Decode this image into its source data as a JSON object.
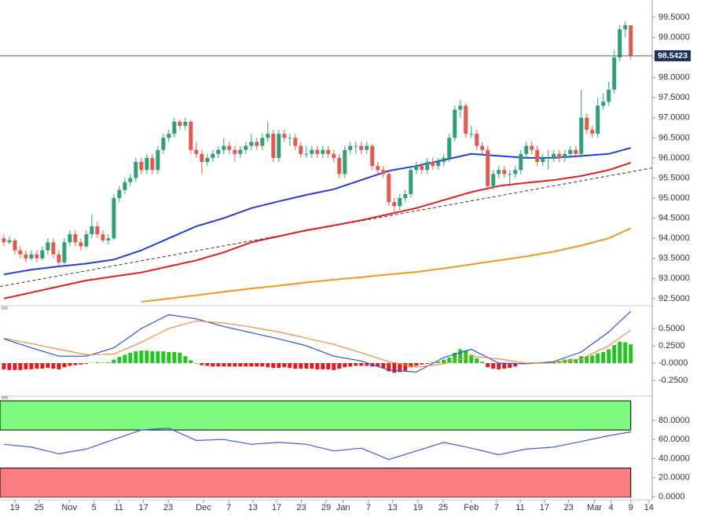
{
  "chart_data": [
    {
      "type": "candlestick",
      "xlim": [
        -0.7,
        117.9
      ],
      "ylim": [
        92.4,
        99.93
      ],
      "yticks": [
        {
          "value": 92.5,
          "label": "92.5000"
        },
        {
          "value": 93,
          "label": "93.0000"
        },
        {
          "value": 93.5,
          "label": "93.5000"
        },
        {
          "value": 94,
          "label": "94.0000"
        },
        {
          "value": 94.5,
          "label": "94.5000"
        },
        {
          "value": 95,
          "label": "95.0000"
        },
        {
          "value": 95.5,
          "label": "95.5000"
        },
        {
          "value": 96,
          "label": "96.0000"
        },
        {
          "value": 96.5,
          "label": "96.5000"
        },
        {
          "value": 97,
          "label": "97.0000"
        },
        {
          "value": 97.5,
          "label": "97.5000"
        },
        {
          "value": 98,
          "label": "98.0000"
        },
        {
          "value": 98.5,
          "label": "98.5000"
        },
        {
          "value": 99,
          "label": "99.0000"
        },
        {
          "value": 99.5,
          "label": "99.5000"
        }
      ],
      "up_color": "#2e9f77",
      "down_color": "#e05a4f",
      "candles": [
        [
          94.0,
          94.1,
          93.8,
          93.9
        ],
        [
          93.9,
          94.05,
          93.85,
          93.95
        ],
        [
          93.95,
          94.0,
          93.6,
          93.7
        ],
        [
          93.7,
          93.8,
          93.5,
          93.6
        ],
        [
          93.6,
          93.7,
          93.4,
          93.5
        ],
        [
          93.5,
          93.7,
          93.45,
          93.6
        ],
        [
          93.6,
          93.7,
          93.4,
          93.5
        ],
        [
          93.5,
          93.8,
          93.45,
          93.7
        ],
        [
          93.7,
          94.0,
          93.6,
          93.9
        ],
        [
          93.9,
          94.0,
          93.5,
          93.6
        ],
        [
          93.6,
          93.7,
          93.3,
          93.4
        ],
        [
          93.4,
          94.0,
          93.35,
          93.9
        ],
        [
          93.9,
          94.2,
          93.8,
          94.1
        ],
        [
          94.1,
          94.2,
          93.8,
          93.9
        ],
        [
          93.9,
          94.0,
          93.7,
          93.8
        ],
        [
          93.8,
          94.2,
          93.75,
          94.1
        ],
        [
          94.1,
          94.6,
          94.0,
          94.3
        ],
        [
          94.3,
          94.4,
          94.0,
          94.1
        ],
        [
          94.1,
          94.2,
          93.9,
          93.95
        ],
        [
          93.95,
          94.1,
          93.85,
          94.0
        ],
        [
          94.0,
          95.1,
          93.95,
          95.0
        ],
        [
          95.0,
          95.3,
          94.9,
          95.2
        ],
        [
          95.2,
          95.5,
          95.1,
          95.4
        ],
        [
          95.4,
          95.6,
          95.3,
          95.5
        ],
        [
          95.5,
          96.0,
          95.4,
          95.9
        ],
        [
          95.9,
          96.0,
          95.6,
          95.7
        ],
        [
          95.7,
          96.1,
          95.6,
          96.0
        ],
        [
          96.0,
          96.1,
          95.6,
          95.7
        ],
        [
          95.7,
          96.3,
          95.6,
          96.2
        ],
        [
          96.2,
          96.6,
          96.1,
          96.5
        ],
        [
          96.5,
          96.7,
          96.4,
          96.6
        ],
        [
          96.6,
          97.0,
          96.5,
          96.9
        ],
        [
          96.9,
          96.95,
          96.7,
          96.8
        ],
        [
          96.8,
          97.0,
          96.7,
          96.9
        ],
        [
          96.9,
          96.95,
          96.1,
          96.2
        ],
        [
          96.2,
          96.4,
          96.0,
          96.1
        ],
        [
          96.1,
          96.2,
          95.6,
          95.9
        ],
        [
          95.9,
          96.1,
          95.8,
          96.0
        ],
        [
          96.0,
          96.2,
          95.9,
          96.1
        ],
        [
          96.1,
          96.3,
          96.0,
          96.2
        ],
        [
          96.2,
          96.5,
          96.1,
          96.3
        ],
        [
          96.3,
          96.4,
          96.1,
          96.2
        ],
        [
          96.2,
          96.3,
          95.9,
          96.1
        ],
        [
          96.1,
          96.3,
          96.0,
          96.2
        ],
        [
          96.2,
          96.4,
          96.1,
          96.3
        ],
        [
          96.3,
          96.6,
          96.2,
          96.4
        ],
        [
          96.4,
          96.5,
          96.2,
          96.3
        ],
        [
          96.3,
          96.6,
          96.2,
          96.5
        ],
        [
          96.5,
          96.9,
          96.4,
          96.6
        ],
        [
          96.6,
          96.7,
          95.9,
          96.0
        ],
        [
          96.0,
          96.7,
          95.9,
          96.6
        ],
        [
          96.6,
          96.7,
          96.4,
          96.5
        ],
        [
          96.5,
          96.6,
          96.3,
          96.5
        ],
        [
          96.5,
          96.6,
          96.2,
          96.3
        ],
        [
          96.3,
          96.4,
          96.0,
          96.1
        ],
        [
          96.1,
          96.3,
          96.0,
          96.1
        ],
        [
          96.1,
          96.3,
          96.0,
          96.2
        ],
        [
          96.2,
          96.3,
          96.0,
          96.1
        ],
        [
          96.1,
          96.3,
          96.0,
          96.2
        ],
        [
          96.2,
          96.3,
          96.0,
          96.1
        ],
        [
          96.1,
          96.2,
          95.9,
          96.0
        ],
        [
          96.0,
          96.1,
          95.5,
          95.6
        ],
        [
          95.6,
          96.3,
          95.5,
          96.2
        ],
        [
          96.2,
          96.4,
          96.1,
          96.3
        ],
        [
          96.3,
          96.4,
          96.1,
          96.3
        ],
        [
          96.3,
          96.4,
          96.1,
          96.2
        ],
        [
          96.2,
          96.4,
          96.1,
          96.3
        ],
        [
          96.3,
          96.35,
          95.7,
          95.8
        ],
        [
          95.8,
          95.9,
          95.6,
          95.7
        ],
        [
          95.7,
          95.8,
          95.5,
          95.6
        ],
        [
          95.6,
          95.7,
          94.8,
          94.9
        ],
        [
          94.9,
          95.0,
          94.65,
          94.8
        ],
        [
          94.8,
          95.1,
          94.7,
          95.0
        ],
        [
          95.0,
          95.2,
          94.9,
          95.1
        ],
        [
          95.1,
          95.8,
          95.0,
          95.7
        ],
        [
          95.7,
          95.9,
          95.6,
          95.8
        ],
        [
          95.8,
          95.9,
          95.6,
          95.7
        ],
        [
          95.7,
          96.0,
          95.6,
          95.9
        ],
        [
          95.9,
          96.0,
          95.7,
          95.8
        ],
        [
          95.8,
          96.0,
          95.7,
          95.9
        ],
        [
          95.9,
          96.1,
          95.8,
          96.0
        ],
        [
          96.0,
          96.6,
          95.9,
          96.5
        ],
        [
          96.5,
          97.3,
          96.4,
          97.2
        ],
        [
          97.2,
          97.45,
          97.0,
          97.3
        ],
        [
          97.3,
          97.35,
          96.5,
          96.6
        ],
        [
          96.6,
          96.8,
          96.5,
          96.6
        ],
        [
          96.6,
          96.7,
          96.2,
          96.3
        ],
        [
          96.3,
          96.4,
          96.1,
          96.2
        ],
        [
          96.2,
          96.3,
          95.2,
          95.3
        ],
        [
          95.3,
          95.7,
          95.2,
          95.6
        ],
        [
          95.6,
          95.8,
          95.5,
          95.7
        ],
        [
          95.7,
          95.8,
          95.5,
          95.6
        ],
        [
          95.6,
          95.7,
          95.3,
          95.6
        ],
        [
          95.6,
          95.8,
          95.5,
          95.7
        ],
        [
          95.7,
          96.2,
          95.6,
          96.1
        ],
        [
          96.1,
          96.4,
          96.0,
          96.3
        ],
        [
          96.3,
          96.4,
          96.1,
          96.2
        ],
        [
          96.2,
          96.3,
          95.8,
          95.9
        ],
        [
          95.9,
          96.1,
          95.8,
          96.0
        ],
        [
          96.0,
          96.2,
          95.7,
          96.0
        ],
        [
          96.0,
          96.2,
          95.9,
          96.1
        ],
        [
          96.1,
          96.2,
          95.9,
          96.0
        ],
        [
          96.0,
          96.2,
          95.9,
          96.1
        ],
        [
          96.1,
          96.3,
          96.0,
          96.2
        ],
        [
          96.2,
          96.3,
          96.0,
          96.1
        ],
        [
          96.1,
          97.7,
          96.0,
          97.0
        ],
        [
          97.0,
          97.1,
          96.6,
          96.7
        ],
        [
          96.7,
          96.8,
          96.5,
          96.6
        ],
        [
          96.6,
          97.5,
          96.5,
          97.3
        ],
        [
          97.3,
          97.6,
          97.2,
          97.4
        ],
        [
          97.4,
          97.9,
          97.3,
          97.7
        ],
        [
          97.7,
          98.7,
          97.6,
          98.5
        ],
        [
          98.5,
          99.3,
          98.4,
          99.2
        ],
        [
          99.2,
          99.4,
          99.0,
          99.3
        ],
        [
          99.3,
          99.3,
          98.45,
          98.5423
        ]
      ],
      "line_x": [
        0,
        5,
        10,
        15,
        20,
        25,
        30,
        35,
        40,
        45,
        50,
        55,
        60,
        65,
        70,
        75,
        80,
        85,
        90,
        95,
        100,
        105,
        110,
        114
      ],
      "lines": [
        {
          "color": "#1f3fd6",
          "values": [
            93.1,
            93.22,
            93.3,
            93.37,
            93.47,
            93.7,
            94.0,
            94.3,
            94.5,
            94.75,
            94.92,
            95.08,
            95.22,
            95.45,
            95.68,
            95.8,
            95.95,
            96.1,
            96.05,
            96.0,
            96.0,
            96.05,
            96.1,
            96.25
          ]
        },
        {
          "color": "#e01e1e",
          "values": [
            92.5,
            92.65,
            92.8,
            92.95,
            93.05,
            93.15,
            93.3,
            93.45,
            93.65,
            93.9,
            94.05,
            94.2,
            94.32,
            94.45,
            94.6,
            94.75,
            94.95,
            95.15,
            95.3,
            95.38,
            95.45,
            95.55,
            95.7,
            95.88
          ]
        },
        {
          "color": "#f7941d",
          "values": [
            null,
            null,
            null,
            null,
            null,
            92.42,
            92.5,
            92.58,
            92.67,
            92.75,
            92.82,
            92.9,
            92.97,
            93.03,
            93.1,
            93.16,
            93.25,
            93.35,
            93.45,
            93.55,
            93.67,
            93.82,
            94.0,
            94.25
          ]
        }
      ],
      "trend": {
        "color": "#333333",
        "x": [
          -0.7,
          117.9
        ],
        "values": [
          92.8,
          95.75
        ]
      },
      "last_price": 98.5423,
      "last_price_color": "#1c2f5e"
    },
    {
      "type": "macd",
      "ylim": [
        -0.432,
        0.784
      ],
      "yticks": [
        {
          "value": 0.5,
          "label": "0.5000"
        },
        {
          "value": 0.25,
          "label": "0.2500"
        },
        {
          "value": 0,
          "label": "-0.0000"
        },
        {
          "value": -0.25,
          "label": "-0.2500"
        }
      ],
      "pos_color": "#22c522",
      "neg_color": "#e41a1a",
      "histogram": [
        -0.09,
        -0.1,
        -0.1,
        -0.1,
        -0.09,
        -0.09,
        -0.08,
        -0.08,
        -0.07,
        -0.08,
        -0.09,
        -0.06,
        -0.04,
        -0.03,
        -0.02,
        -0.01,
        0.005,
        0.01,
        0.005,
        0.01,
        0.05,
        0.09,
        0.12,
        0.15,
        0.17,
        0.18,
        0.18,
        0.17,
        0.17,
        0.17,
        0.16,
        0.16,
        0.15,
        0.1,
        0.04,
        -0.005,
        -0.03,
        -0.04,
        -0.05,
        -0.05,
        -0.05,
        -0.05,
        -0.05,
        -0.05,
        -0.05,
        -0.05,
        -0.05,
        -0.05,
        -0.06,
        -0.07,
        -0.07,
        -0.06,
        -0.07,
        -0.08,
        -0.08,
        -0.08,
        -0.08,
        -0.09,
        -0.09,
        -0.09,
        -0.1,
        -0.08,
        -0.06,
        -0.05,
        -0.04,
        -0.04,
        -0.04,
        -0.05,
        -0.05,
        -0.07,
        -0.12,
        -0.14,
        -0.13,
        -0.11,
        -0.06,
        -0.04,
        -0.02,
        -0.01,
        0.01,
        0.02,
        0.05,
        0.08,
        0.15,
        0.2,
        0.18,
        0.12,
        0.07,
        0.02,
        -0.06,
        -0.08,
        -0.09,
        -0.08,
        -0.07,
        -0.05,
        -0.01,
        0.005,
        0.01,
        0.01,
        0.01,
        0.01,
        0.02,
        0.03,
        0.05,
        0.06,
        0.06,
        0.1,
        0.1,
        0.11,
        0.14,
        0.16,
        0.2,
        0.26,
        0.31,
        0.3,
        0.27
      ],
      "lines": [
        {
          "color": "#2b4fd8",
          "values": [
            0.35,
            0.22,
            0.1,
            0.1,
            0.22,
            0.5,
            0.7,
            0.64,
            0.53,
            0.44,
            0.35,
            0.25,
            0.1,
            0.03,
            -0.1,
            -0.13,
            0.08,
            0.2,
            0.0,
            -0.01,
            0.02,
            0.16,
            0.45,
            0.75
          ]
        },
        {
          "color": "#f08a3c",
          "values": [
            0.36,
            0.28,
            0.2,
            0.12,
            0.13,
            0.3,
            0.5,
            0.61,
            0.58,
            0.52,
            0.45,
            0.36,
            0.27,
            0.15,
            0.02,
            -0.06,
            -0.01,
            0.1,
            0.06,
            0.0,
            0.0,
            0.06,
            0.25,
            0.48
          ]
        }
      ]
    },
    {
      "type": "rsi",
      "ylim": [
        -0.8,
        101.4
      ],
      "yticks": [
        {
          "value": 0,
          "label": "0.0000"
        },
        {
          "value": 20,
          "label": "20.0000"
        },
        {
          "value": 40,
          "label": "40.0000"
        },
        {
          "value": 60,
          "label": "60.0000"
        },
        {
          "value": 80,
          "label": "80.0000"
        }
      ],
      "overbought": 70,
      "overbought_color": "#7dfa7d",
      "oversold": 30,
      "oversold_color": "#fb7e7e",
      "lines": [
        {
          "color": "#3b5bdb",
          "values": [
            55,
            52,
            45,
            50,
            60,
            70,
            72,
            59,
            60,
            55,
            57,
            55,
            48,
            51,
            39,
            48,
            57,
            51,
            44,
            50,
            52,
            58,
            64,
            68
          ]
        }
      ],
      "xticks": [
        {
          "value": 2,
          "label": "19"
        },
        {
          "value": 6.4,
          "label": "25"
        },
        {
          "value": 11.9,
          "label": "Nov"
        },
        {
          "value": 16.4,
          "label": "5"
        },
        {
          "value": 20.9,
          "label": "11"
        },
        {
          "value": 25.4,
          "label": "17"
        },
        {
          "value": 29.9,
          "label": "23"
        },
        {
          "value": 36.3,
          "label": "Dec"
        },
        {
          "value": 40.9,
          "label": "7"
        },
        {
          "value": 45.3,
          "label": "13"
        },
        {
          "value": 49.6,
          "label": "17"
        },
        {
          "value": 54.1,
          "label": "23"
        },
        {
          "value": 58.6,
          "label": "29"
        },
        {
          "value": 61.7,
          "label": "Jan"
        },
        {
          "value": 66.3,
          "label": "7"
        },
        {
          "value": 70.7,
          "label": "13"
        },
        {
          "value": 75.3,
          "label": "19"
        },
        {
          "value": 79.9,
          "label": "25"
        },
        {
          "value": 85,
          "label": "Feb"
        },
        {
          "value": 89.6,
          "label": "7"
        },
        {
          "value": 93.9,
          "label": "11"
        },
        {
          "value": 98.3,
          "label": "17"
        },
        {
          "value": 102.7,
          "label": "23"
        },
        {
          "value": 107.4,
          "label": "Mar"
        },
        {
          "value": 110.4,
          "label": "4"
        },
        {
          "value": 114,
          "label": "9"
        },
        {
          "value": 117.3,
          "label": "14"
        }
      ]
    }
  ]
}
